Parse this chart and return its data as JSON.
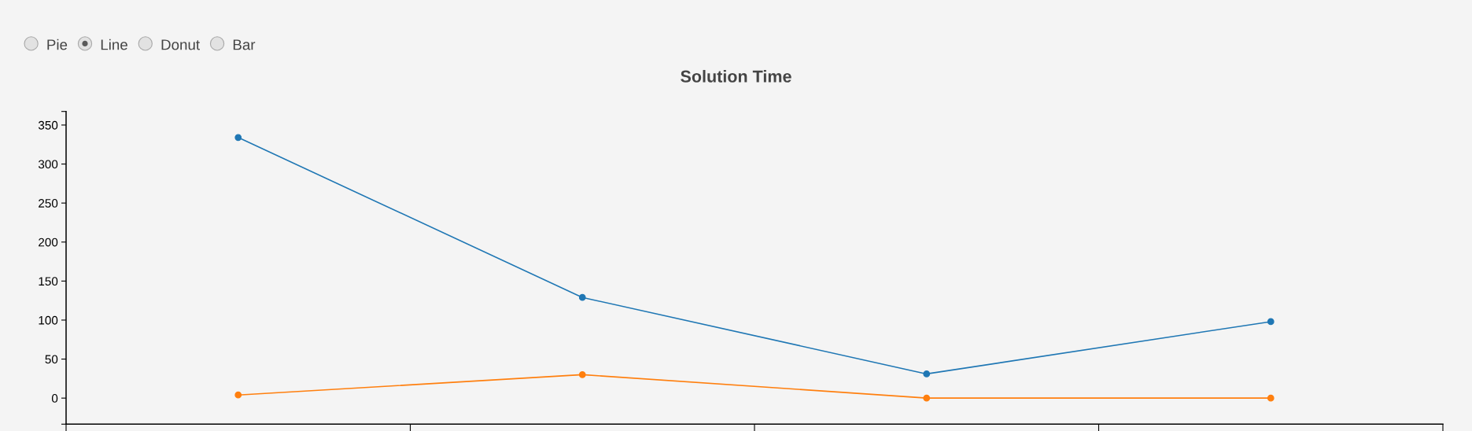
{
  "chart_data": {
    "type": "line",
    "title": "Solution Time",
    "annotations": [
      "Pie",
      "Line",
      "Donut",
      "Bar"
    ],
    "categories": [
      null,
      null,
      null,
      null
    ],
    "series": [
      {
        "color": "#1f77b4",
        "values": [
          334,
          129,
          31,
          98
        ]
      },
      {
        "color": "#ff7f0e",
        "values": [
          4,
          30,
          0,
          0
        ]
      }
    ],
    "ylim": [
      -33.4,
      367.4
    ],
    "yticks": [
      {
        "value": -33.4,
        "label": null
      },
      0,
      50,
      100,
      150,
      200,
      250,
      300,
      350,
      {
        "value": 367.4,
        "label": null
      }
    ],
    "tick_labels": "y",
    "marker": "circle",
    "line_style": "solid",
    "grid": false
  }
}
